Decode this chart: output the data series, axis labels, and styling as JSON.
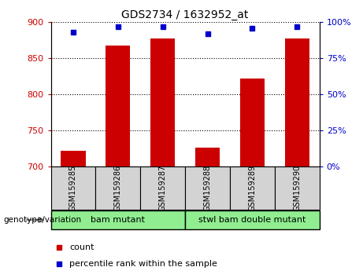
{
  "title": "GDS2734 / 1632952_at",
  "samples": [
    "GSM159285",
    "GSM159286",
    "GSM159287",
    "GSM159288",
    "GSM159289",
    "GSM159290"
  ],
  "counts": [
    722,
    868,
    878,
    726,
    822,
    878
  ],
  "percentile_ranks": [
    93,
    97,
    97,
    92,
    96,
    97
  ],
  "ylim_left": [
    700,
    900
  ],
  "ylim_right": [
    0,
    100
  ],
  "yticks_left": [
    700,
    750,
    800,
    850,
    900
  ],
  "yticks_right": [
    0,
    25,
    50,
    75,
    100
  ],
  "groups": [
    {
      "label": "bam mutant",
      "indices": [
        0,
        1,
        2
      ]
    },
    {
      "label": "stwl bam double mutant",
      "indices": [
        3,
        4,
        5
      ]
    }
  ],
  "group_label_prefix": "genotype/variation",
  "bar_color": "#cc0000",
  "marker_color": "#0000cc",
  "bar_width": 0.55,
  "grid_color": "black",
  "group_bg_color": "#90ee90",
  "tick_bg_color": "#d3d3d3",
  "legend_count_label": "count",
  "legend_pct_label": "percentile rank within the sample",
  "left_tick_color": "#cc0000",
  "right_tick_color": "#0000cc"
}
